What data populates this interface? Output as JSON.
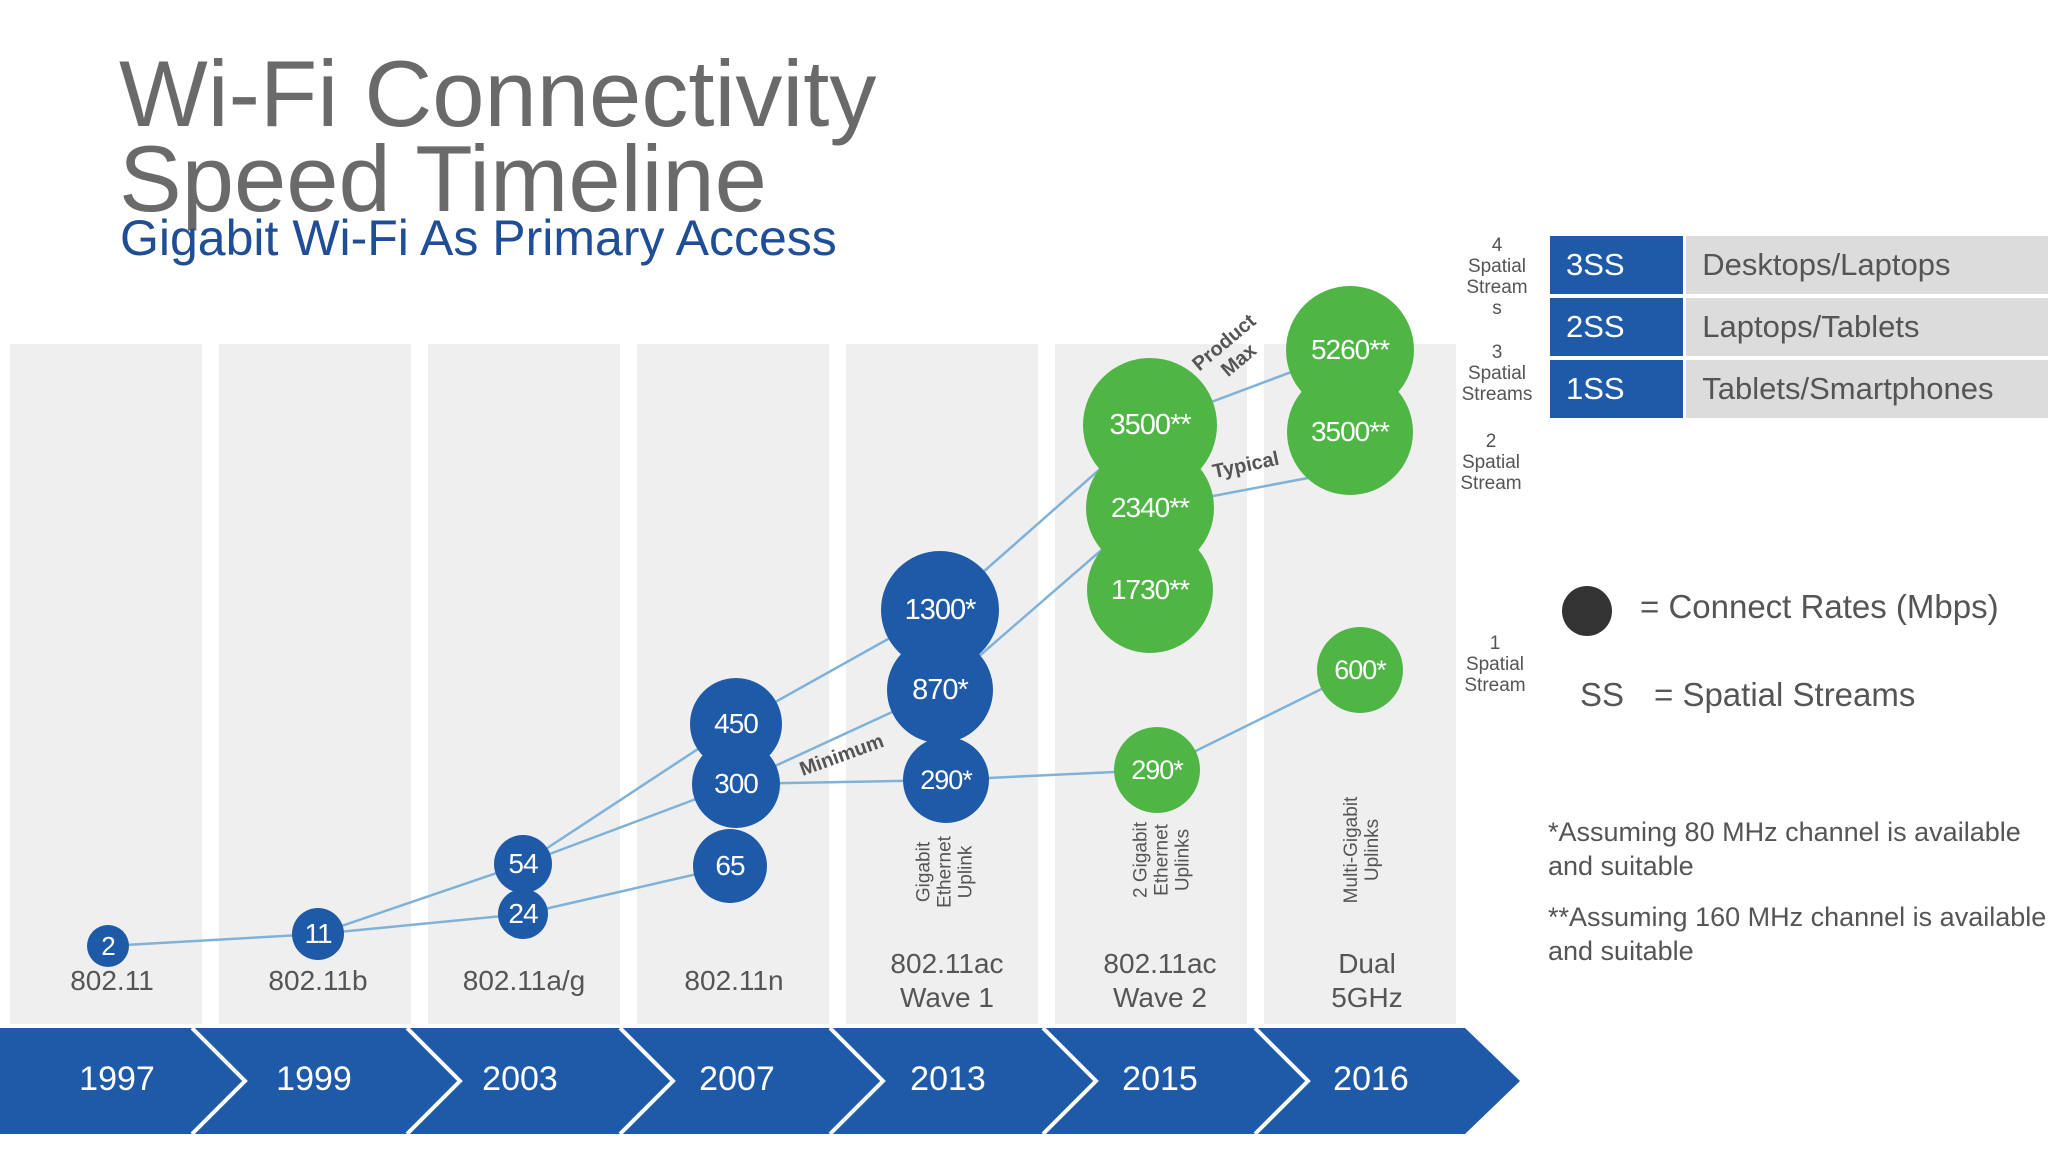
{
  "title_line1": "Wi-Fi Connectivity",
  "title_line2": "Speed Timeline",
  "subtitle": "Gigabit Wi-Fi As Primary Access",
  "columns": [
    {
      "year": "1997",
      "standard_line1": "802.11",
      "standard_line2": "",
      "uplink": ""
    },
    {
      "year": "1999",
      "standard_line1": "802.11b",
      "standard_line2": "",
      "uplink": ""
    },
    {
      "year": "2003",
      "standard_line1": "802.11a/g",
      "standard_line2": "",
      "uplink": ""
    },
    {
      "year": "2007",
      "standard_line1": "802.11n",
      "standard_line2": "",
      "uplink": ""
    },
    {
      "year": "2013",
      "standard_line1": "802.11ac",
      "standard_line2": "Wave 1",
      "uplink": "Gigabit\nEthernet\nUplink"
    },
    {
      "year": "2015",
      "standard_line1": "802.11ac",
      "standard_line2": "Wave 2",
      "uplink": "2 Gigabit\nEthernet\nUplinks"
    },
    {
      "year": "2016",
      "standard_line1": "Dual",
      "standard_line2": "5GHz",
      "uplink": "Multi-Gigabit\nUplinks"
    }
  ],
  "bubbles": [
    {
      "label": "2",
      "color": "blue"
    },
    {
      "label": "11",
      "color": "blue"
    },
    {
      "label": "54",
      "color": "blue"
    },
    {
      "label": "24",
      "color": "blue"
    },
    {
      "label": "450",
      "color": "blue"
    },
    {
      "label": "300",
      "color": "blue"
    },
    {
      "label": "65",
      "color": "blue"
    },
    {
      "label": "1300*",
      "color": "blue"
    },
    {
      "label": "870*",
      "color": "blue"
    },
    {
      "label": "290*",
      "color": "blue"
    },
    {
      "label": "3500**",
      "color": "green"
    },
    {
      "label": "2340**",
      "color": "green"
    },
    {
      "label": "1730**",
      "color": "green"
    },
    {
      "label": "290*",
      "color": "green"
    },
    {
      "label": "5260**",
      "color": "green"
    },
    {
      "label": "3500**",
      "color": "green"
    },
    {
      "label": "600*",
      "color": "green"
    }
  ],
  "line_tags": {
    "minimum": "Minimum",
    "typical": "Typical",
    "product_max_line1": "Product",
    "product_max_line2": "Max"
  },
  "stream_labels": [
    "4\nSpatial\nStream\ns",
    "3\nSpatial\nStreams",
    "2\nSpatial\nStream",
    "1\nSpatial\nStream"
  ],
  "legend_table": [
    {
      "code": "3SS",
      "description": "Desktops/Laptops"
    },
    {
      "code": "2SS",
      "description": "Laptops/Tablets"
    },
    {
      "code": "1SS",
      "description": "Tablets/Smartphones"
    }
  ],
  "legend": {
    "connect_rates": "= Connect Rates (Mbps)",
    "ss_abbr": "SS",
    "ss_meaning": "= Spatial Streams"
  },
  "notes": {
    "note1": "*Assuming 80 MHz  channel is available and suitable",
    "note2": "**Assuming 160 MHz channel is available and suitable"
  },
  "colors": {
    "blue": "#1f5aa8",
    "green": "#4fb646",
    "line": "#7fb2d9",
    "banner": "#1f5aa8",
    "title_grey": "#6a6a6a",
    "subtitle_blue": "#1f4e96"
  }
}
